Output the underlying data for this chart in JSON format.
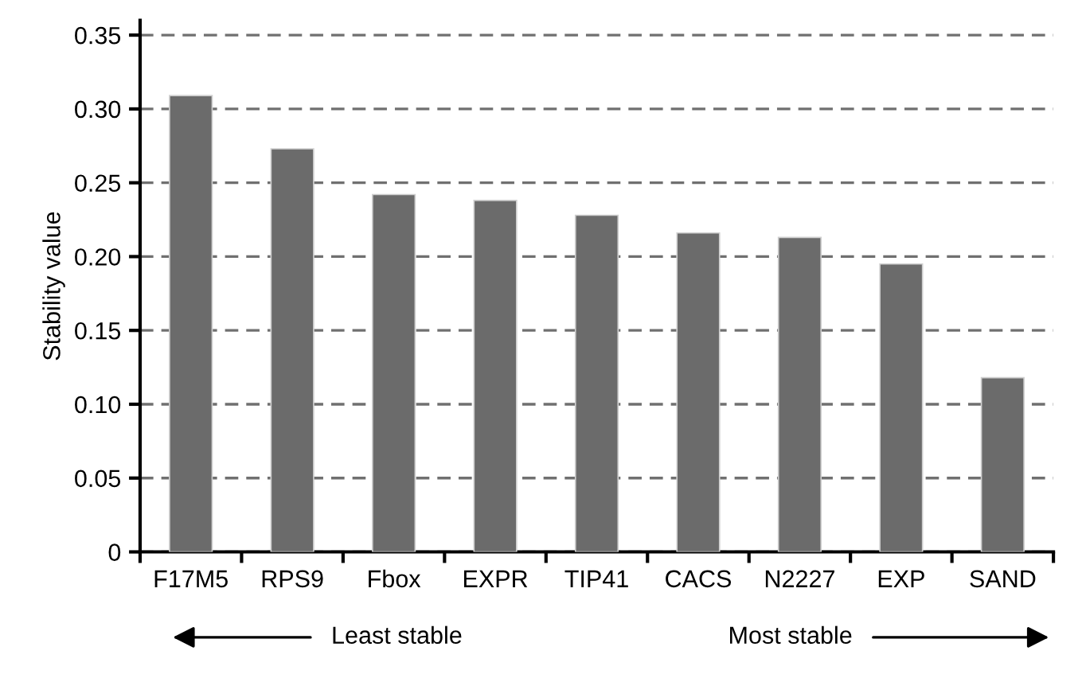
{
  "chart_data": {
    "type": "bar",
    "ylabel": "Stability value",
    "categories": [
      "F17M5",
      "RPS9",
      "Fbox",
      "EXPR",
      "TIP41",
      "CACS",
      "N2227",
      "EXP",
      "SAND"
    ],
    "values": [
      0.309,
      0.273,
      0.242,
      0.238,
      0.228,
      0.216,
      0.213,
      0.195,
      0.118
    ],
    "color": "#6b6b6b",
    "ylim": [
      0,
      0.36
    ],
    "yticks": [
      0,
      0.05,
      {
        "value": 0.1,
        "label": "0.10"
      },
      0.15,
      {
        "value": 0.2,
        "label": "0.20"
      },
      0.25,
      {
        "value": 0.3,
        "label": "0.30"
      },
      0.35
    ],
    "grid": "y",
    "annotations": [
      "Least stable",
      "Most stable"
    ]
  }
}
